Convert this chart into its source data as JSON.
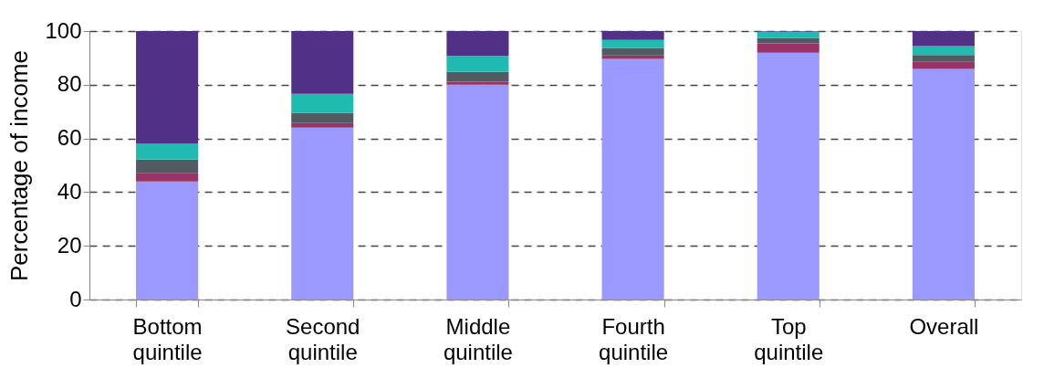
{
  "chart_data": {
    "type": "bar",
    "stacked": true,
    "ylabel": "Percentage of income",
    "categories": [
      "Bottom quintile",
      "Second quintile",
      "Middle quintile",
      "Fourth quintile",
      "Top quintile",
      "Overall"
    ],
    "series": [
      {
        "color": "#9999ff",
        "values": [
          44.0,
          64.0,
          80.0,
          89.6,
          91.9,
          85.9
        ]
      },
      {
        "color": "#993366",
        "values": [
          3.2,
          1.7,
          1.1,
          1.3,
          3.5,
          2.6
        ]
      },
      {
        "color": "#525a62",
        "values": [
          4.9,
          3.8,
          3.7,
          2.8,
          2.0,
          2.6
        ]
      },
      {
        "color": "#20bbb0",
        "values": [
          5.9,
          7.1,
          5.9,
          3.0,
          2.4,
          3.3
        ]
      },
      {
        "color": "#513185",
        "values": [
          42.0,
          23.4,
          9.3,
          3.3,
          0.2,
          5.6
        ]
      }
    ],
    "ylim": [
      0,
      100
    ],
    "yticks": [
      0,
      20,
      40,
      60,
      80,
      100
    ],
    "grid": "y",
    "legend": false
  }
}
